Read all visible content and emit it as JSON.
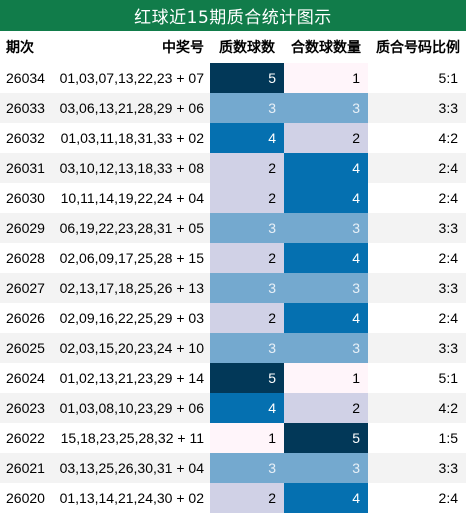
{
  "title": "红球近15期质合统计图示",
  "headers": {
    "period": "期次",
    "numbers": "中奖号",
    "prime": "质数球数",
    "composite": "合数球数量",
    "ratio": "质合号码比例"
  },
  "colors": {
    "title_bg": "#117c4a",
    "level_1": "#fff5fa",
    "level_2": "#d0d1e6",
    "level_3": "#74a9cf",
    "level_4": "#0570b0",
    "level_5": "#023858"
  },
  "rows": [
    {
      "period": "26034",
      "numbers": "01,03,07,13,22,23 + 07",
      "prime": 5,
      "composite": 1,
      "ratio": "5:1"
    },
    {
      "period": "26033",
      "numbers": "03,06,13,21,28,29 + 06",
      "prime": 3,
      "composite": 3,
      "ratio": "3:3"
    },
    {
      "period": "26032",
      "numbers": "01,03,11,18,31,33 + 02",
      "prime": 4,
      "composite": 2,
      "ratio": "4:2"
    },
    {
      "period": "26031",
      "numbers": "03,10,12,13,18,33 + 08",
      "prime": 2,
      "composite": 4,
      "ratio": "2:4"
    },
    {
      "period": "26030",
      "numbers": "10,11,14,19,22,24 + 04",
      "prime": 2,
      "composite": 4,
      "ratio": "2:4"
    },
    {
      "period": "26029",
      "numbers": "06,19,22,23,28,31 + 05",
      "prime": 3,
      "composite": 3,
      "ratio": "3:3"
    },
    {
      "period": "26028",
      "numbers": "02,06,09,17,25,28 + 15",
      "prime": 2,
      "composite": 4,
      "ratio": "2:4"
    },
    {
      "period": "26027",
      "numbers": "02,13,17,18,25,26 + 13",
      "prime": 3,
      "composite": 3,
      "ratio": "3:3"
    },
    {
      "period": "26026",
      "numbers": "02,09,16,22,25,29 + 03",
      "prime": 2,
      "composite": 4,
      "ratio": "2:4"
    },
    {
      "period": "26025",
      "numbers": "02,03,15,20,23,24 + 10",
      "prime": 3,
      "composite": 3,
      "ratio": "3:3"
    },
    {
      "period": "26024",
      "numbers": "01,02,13,21,23,29 + 14",
      "prime": 5,
      "composite": 1,
      "ratio": "5:1"
    },
    {
      "period": "26023",
      "numbers": "01,03,08,10,23,29 + 06",
      "prime": 4,
      "composite": 2,
      "ratio": "4:2"
    },
    {
      "period": "26022",
      "numbers": "15,18,23,25,28,32 + 11",
      "prime": 1,
      "composite": 5,
      "ratio": "1:5"
    },
    {
      "period": "26021",
      "numbers": "03,13,25,26,30,31 + 04",
      "prime": 3,
      "composite": 3,
      "ratio": "3:3"
    },
    {
      "period": "26020",
      "numbers": "01,13,14,21,24,30 + 02",
      "prime": 2,
      "composite": 4,
      "ratio": "2:4"
    }
  ]
}
